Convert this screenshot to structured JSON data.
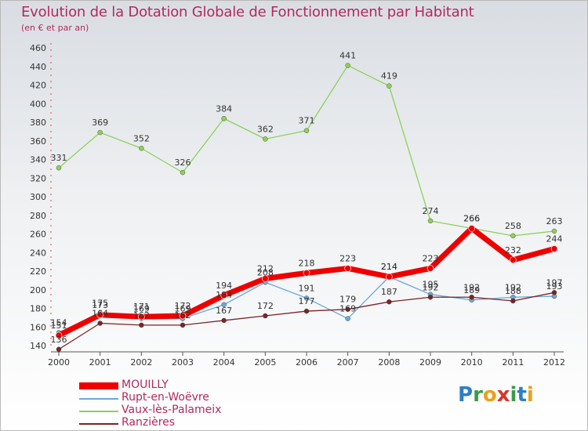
{
  "header": {
    "title": "Evolution de la Dotation Globale de Fonctionnement par Habitant",
    "subtitle": "(en € et par an)"
  },
  "brand": {
    "text": "Proxiti",
    "letters": [
      {
        "ch": "P",
        "color": "#2f7fc1"
      },
      {
        "ch": "r",
        "color": "#3a9a4a"
      },
      {
        "ch": "o",
        "color": "#e8a21a"
      },
      {
        "ch": "x",
        "color": "#d9342b"
      },
      {
        "ch": "i",
        "color": "#3a9a4a"
      },
      {
        "ch": "t",
        "color": "#2f7fc1"
      },
      {
        "ch": "i",
        "color": "#e8a21a"
      }
    ]
  },
  "chart_data": {
    "type": "line",
    "title": "Evolution de la Dotation Globale de Fonctionnement par Habitant",
    "ylabel": "(en € et par an)",
    "xlabel": "",
    "x": [
      "2000",
      "2001",
      "2002",
      "2003",
      "2004",
      "2005",
      "2006",
      "2007",
      "2008",
      "2009",
      "2010",
      "2011",
      "2012"
    ],
    "ylim": [
      140,
      460
    ],
    "yticks": [
      "140",
      "160",
      "180",
      "200",
      "220",
      "240",
      "260",
      "280",
      "300",
      "320",
      "340",
      "360",
      "380",
      "400",
      "420",
      "440",
      "460"
    ],
    "grid": false,
    "series": [
      {
        "name": "Vaux-lès-Palameix",
        "color": "#8ed057",
        "values": [
          331,
          369,
          352,
          326,
          384,
          362,
          371,
          441,
          419,
          274,
          266,
          258,
          263
        ],
        "labels": [
          "331",
          "369",
          "352",
          "326",
          "384",
          "362",
          "371",
          "441",
          "419",
          "274",
          "266",
          "258",
          "263"
        ]
      },
      {
        "name": "Rupt-en-Woëvre",
        "color": "#6aa9d8",
        "values": [
          154,
          175,
          169,
          169,
          184,
          208,
          191,
          169,
          214,
          195,
          189,
          192,
          193
        ],
        "labels": [
          "154",
          "175",
          "169",
          "169",
          "184",
          "208",
          "191",
          "169",
          "214",
          "195",
          "189",
          "192",
          "193"
        ]
      },
      {
        "name": "Ranzières",
        "color": "#7d2323",
        "values": [
          136,
          164,
          162,
          162,
          167,
          172,
          177,
          179,
          187,
          192,
          192,
          188,
          197
        ],
        "labels": [
          "136",
          "164",
          "162",
          "162",
          "167",
          "172",
          "177",
          "179",
          "187",
          "192",
          "192",
          "188",
          "197"
        ]
      },
      {
        "name": "MOUILLY",
        "color": "#ee0000",
        "values": [
          151,
          173,
          171,
          172,
          194,
          212,
          218,
          223,
          214,
          223,
          266,
          232,
          244
        ],
        "labels": [
          "151",
          "173",
          "171",
          "172",
          "194",
          "212",
          "218",
          "223",
          "214",
          "223",
          "266",
          "232",
          "244"
        ]
      }
    ],
    "legend_order": [
      "MOUILLY",
      "Rupt-en-Woëvre",
      "Vaux-lès-Palameix",
      "Ranzières"
    ]
  }
}
